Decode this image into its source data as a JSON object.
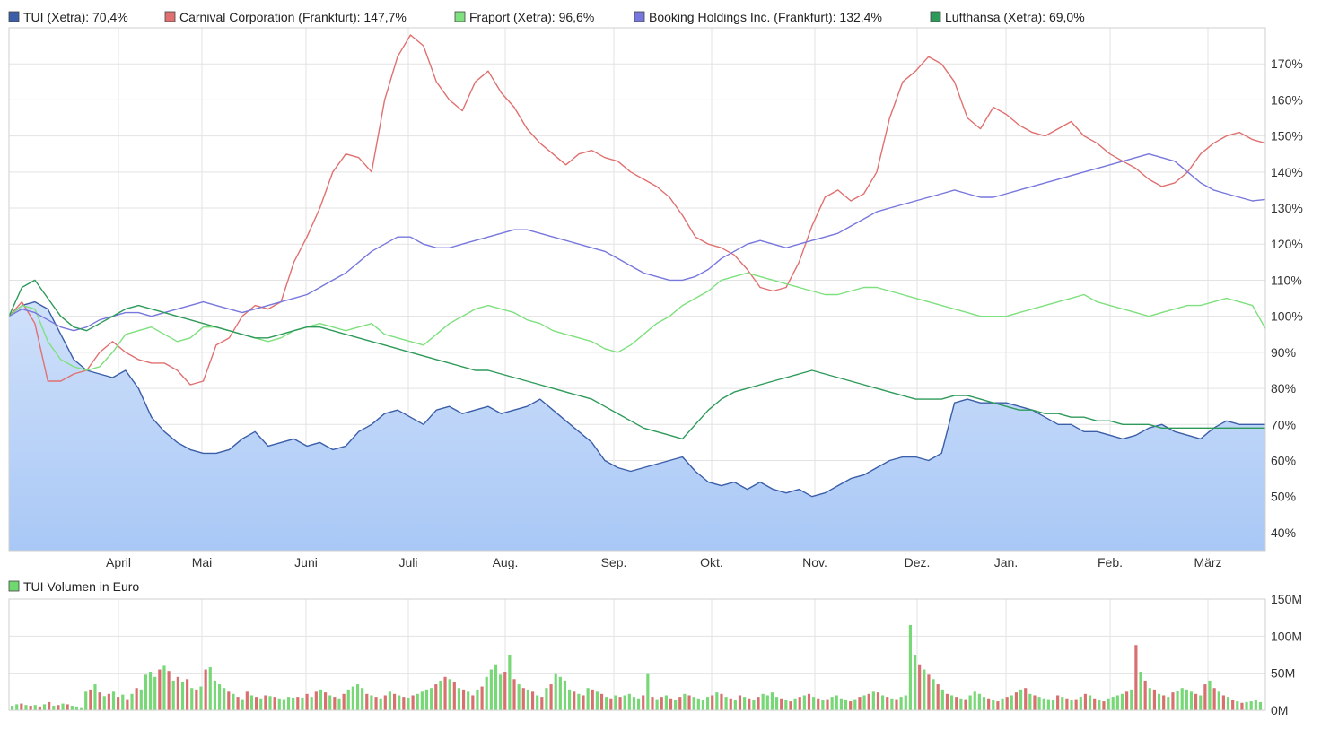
{
  "chart_data": [
    {
      "type": "line",
      "legend": [
        {
          "text": "TUI (Xetra): 70,4%",
          "color": "#3b5ea8"
        },
        {
          "text": "Carnival Corporation (Frankfurt): 147,7%",
          "color": "#e07070"
        },
        {
          "text": "Fraport (Xetra): 96,6%",
          "color": "#7ee07e"
        },
        {
          "text": "Booking Holdings Inc. (Frankfurt): 132,4%",
          "color": "#7777dd"
        },
        {
          "text": "Lufthansa (Xetra): 69,0%",
          "color": "#2e9a5a"
        }
      ],
      "y_ticks": [
        "40%",
        "50%",
        "60%",
        "70%",
        "80%",
        "90%",
        "100%",
        "110%",
        "120%",
        "130%",
        "140%",
        "150%",
        "160%",
        "170%"
      ],
      "ylim": [
        35,
        180
      ],
      "x_ticks": [
        "April",
        "Mai",
        "Juni",
        "Juli",
        "Aug.",
        "Sep.",
        "Okt.",
        "Nov.",
        "Dez.",
        "Jan.",
        "Feb.",
        "März"
      ],
      "grid": true,
      "series": [
        {
          "name": "TUI (Xetra): 70,4%",
          "color": "#3b5ea8",
          "fill": true,
          "values": [
            100,
            103,
            104,
            102,
            95,
            88,
            85,
            84,
            83,
            85,
            80,
            72,
            68,
            65,
            63,
            62,
            62,
            63,
            66,
            68,
            64,
            65,
            66,
            64,
            65,
            63,
            64,
            68,
            70,
            73,
            74,
            72,
            70,
            74,
            75,
            73,
            74,
            75,
            73,
            74,
            75,
            77,
            74,
            71,
            68,
            65,
            60,
            58,
            57,
            58,
            59,
            60,
            61,
            57,
            54,
            53,
            54,
            52,
            54,
            52,
            51,
            52,
            50,
            51,
            53,
            55,
            56,
            58,
            60,
            61,
            61,
            60,
            62,
            76,
            77,
            76,
            76,
            76,
            75,
            74,
            72,
            70,
            70,
            68,
            68,
            67,
            66,
            67,
            69,
            70,
            68,
            67,
            66,
            69,
            71,
            70,
            70,
            70
          ]
        },
        {
          "name": "Carnival Corporation (Frankfurt): 147,7%",
          "color": "#e07070",
          "fill": false,
          "values": [
            100,
            104,
            98,
            82,
            82,
            84,
            85,
            90,
            93,
            90,
            88,
            87,
            87,
            85,
            81,
            82,
            92,
            94,
            100,
            103,
            102,
            104,
            115,
            122,
            130,
            140,
            145,
            144,
            140,
            160,
            172,
            178,
            175,
            165,
            160,
            157,
            165,
            168,
            162,
            158,
            152,
            148,
            145,
            142,
            145,
            146,
            144,
            143,
            140,
            138,
            136,
            133,
            128,
            122,
            120,
            119,
            117,
            113,
            108,
            107,
            108,
            115,
            125,
            133,
            135,
            132,
            134,
            140,
            155,
            165,
            168,
            172,
            170,
            165,
            155,
            152,
            158,
            156,
            153,
            151,
            150,
            152,
            154,
            150,
            148,
            145,
            143,
            141,
            138,
            136,
            137,
            140,
            145,
            148,
            150,
            151,
            149,
            148
          ]
        },
        {
          "name": "Fraport (Xetra): 96,6%",
          "color": "#7ee07e",
          "fill": false,
          "values": [
            100,
            103,
            102,
            93,
            88,
            86,
            85,
            86,
            90,
            95,
            96,
            97,
            95,
            93,
            94,
            97,
            97,
            96,
            95,
            94,
            93,
            94,
            96,
            97,
            98,
            97,
            96,
            97,
            98,
            95,
            94,
            93,
            92,
            95,
            98,
            100,
            102,
            103,
            102,
            101,
            99,
            98,
            96,
            95,
            94,
            93,
            91,
            90,
            92,
            95,
            98,
            100,
            103,
            105,
            107,
            110,
            111,
            112,
            111,
            110,
            109,
            108,
            107,
            106,
            106,
            107,
            108,
            108,
            107,
            106,
            105,
            104,
            103,
            102,
            101,
            100,
            100,
            100,
            101,
            102,
            103,
            104,
            105,
            106,
            104,
            103,
            102,
            101,
            100,
            101,
            102,
            103,
            103,
            104,
            105,
            104,
            103,
            96.6
          ]
        },
        {
          "name": "Booking Holdings Inc. (Frankfurt): 132,4%",
          "color": "#7777dd",
          "fill": false,
          "values": [
            100,
            102,
            101,
            99,
            97,
            96,
            97,
            99,
            100,
            101,
            101,
            100,
            101,
            102,
            103,
            104,
            103,
            102,
            101,
            102,
            103,
            104,
            105,
            106,
            108,
            110,
            112,
            115,
            118,
            120,
            122,
            122,
            120,
            119,
            119,
            120,
            121,
            122,
            123,
            124,
            124,
            123,
            122,
            121,
            120,
            119,
            118,
            116,
            114,
            112,
            111,
            110,
            110,
            111,
            113,
            116,
            118,
            120,
            121,
            120,
            119,
            120,
            121,
            122,
            123,
            125,
            127,
            129,
            130,
            131,
            132,
            133,
            134,
            135,
            134,
            133,
            133,
            134,
            135,
            136,
            137,
            138,
            139,
            140,
            141,
            142,
            143,
            144,
            145,
            144,
            143,
            140,
            137,
            135,
            134,
            133,
            132,
            132.4
          ]
        },
        {
          "name": "Lufthansa (Xetra): 69,0%",
          "color": "#2e9a5a",
          "fill": false,
          "values": [
            100,
            108,
            110,
            105,
            100,
            97,
            96,
            98,
            100,
            102,
            103,
            102,
            101,
            100,
            99,
            98,
            97,
            96,
            95,
            94,
            94,
            95,
            96,
            97,
            97,
            96,
            95,
            94,
            93,
            92,
            91,
            90,
            89,
            88,
            87,
            86,
            85,
            85,
            84,
            83,
            82,
            81,
            80,
            79,
            78,
            77,
            75,
            73,
            71,
            69,
            68,
            67,
            66,
            70,
            74,
            77,
            79,
            80,
            81,
            82,
            83,
            84,
            85,
            84,
            83,
            82,
            81,
            80,
            79,
            78,
            77,
            77,
            77,
            78,
            78,
            77,
            76,
            75,
            74,
            74,
            73,
            73,
            72,
            72,
            71,
            71,
            70,
            70,
            70,
            69,
            69,
            69,
            69,
            69,
            69,
            69,
            69,
            69
          ]
        }
      ]
    },
    {
      "type": "bar",
      "legend": [
        {
          "text": "TUI Volumen in Euro",
          "color": "#6fd86f"
        }
      ],
      "y_ticks": [
        "0M",
        "50M",
        "100M",
        "150M"
      ],
      "ylim": [
        0,
        150
      ],
      "colors": {
        "up": "#78d878",
        "down": "#d87070"
      },
      "values": [
        6,
        8,
        9,
        7,
        6,
        7,
        5,
        8,
        11,
        6,
        7,
        9,
        8,
        6,
        5,
        4,
        25,
        28,
        35,
        24,
        19,
        22,
        25,
        18,
        21,
        15,
        22,
        30,
        28,
        48,
        52,
        45,
        55,
        60,
        53,
        40,
        45,
        38,
        42,
        30,
        28,
        32,
        55,
        58,
        40,
        35,
        30,
        25,
        22,
        18,
        15,
        25,
        20,
        18,
        16,
        20,
        19,
        18,
        16,
        15,
        18,
        17,
        18,
        17,
        22,
        18,
        25,
        28,
        24,
        20,
        18,
        16,
        22,
        28,
        32,
        35,
        30,
        22,
        20,
        18,
        16,
        20,
        25,
        22,
        20,
        18,
        17,
        20,
        22,
        25,
        28,
        30,
        35,
        40,
        45,
        42,
        38,
        30,
        28,
        25,
        20,
        28,
        32,
        45,
        55,
        62,
        48,
        52,
        75,
        42,
        35,
        30,
        28,
        25,
        20,
        18,
        30,
        35,
        50,
        45,
        40,
        28,
        25,
        22,
        20,
        30,
        28,
        25,
        22,
        18,
        16,
        20,
        18,
        20,
        22,
        18,
        16,
        20,
        50,
        18,
        15,
        18,
        20,
        16,
        14,
        18,
        22,
        20,
        18,
        16,
        14,
        18,
        20,
        24,
        22,
        18,
        16,
        14,
        20,
        18,
        16,
        14,
        18,
        22,
        20,
        24,
        18,
        16,
        14,
        12,
        16,
        18,
        20,
        22,
        18,
        16,
        14,
        15,
        18,
        20,
        16,
        14,
        12,
        15,
        18,
        20,
        22,
        25,
        24,
        20,
        18,
        16,
        15,
        18,
        20,
        115,
        75,
        62,
        55,
        48,
        42,
        35,
        28,
        22,
        20,
        18,
        16,
        15,
        20,
        25,
        22,
        18,
        16,
        14,
        12,
        16,
        18,
        20,
        24,
        28,
        30,
        22,
        20,
        18,
        16,
        15,
        14,
        20,
        18,
        16,
        14,
        15,
        18,
        22,
        20,
        16,
        14,
        12,
        16,
        18,
        20,
        22,
        25,
        28,
        88,
        52,
        40,
        30,
        28,
        22,
        20,
        18,
        24,
        26,
        30,
        28,
        25,
        22,
        20,
        35,
        40,
        30,
        25,
        20,
        18,
        14,
        12,
        10,
        11,
        12,
        14,
        11
      ]
    }
  ]
}
